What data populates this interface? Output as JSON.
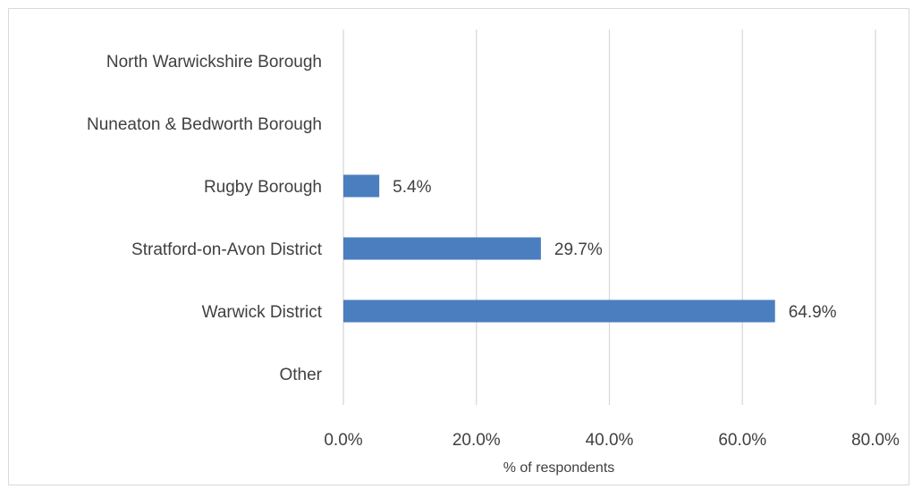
{
  "chart_data": {
    "type": "bar",
    "orientation": "horizontal",
    "categories": [
      "North Warwickshire Borough",
      "Nuneaton & Bedworth Borough",
      "Rugby Borough",
      "Stratford-on-Avon District",
      "Warwick District",
      "Other"
    ],
    "values": [
      0,
      0,
      5.4,
      29.7,
      64.9,
      0
    ],
    "data_labels": [
      "",
      "",
      "5.4%",
      "29.7%",
      "64.9%",
      ""
    ],
    "xlabel": "% of respondents",
    "xlim": [
      0,
      80
    ],
    "x_ticks": [
      0,
      20,
      40,
      60,
      80
    ],
    "x_tick_labels": [
      "0.0%",
      "20.0%",
      "40.0%",
      "60.0%",
      "80.0%"
    ],
    "grid": true,
    "bar_color": "#4a7ebf",
    "grid_color": "#d9d9d9"
  }
}
